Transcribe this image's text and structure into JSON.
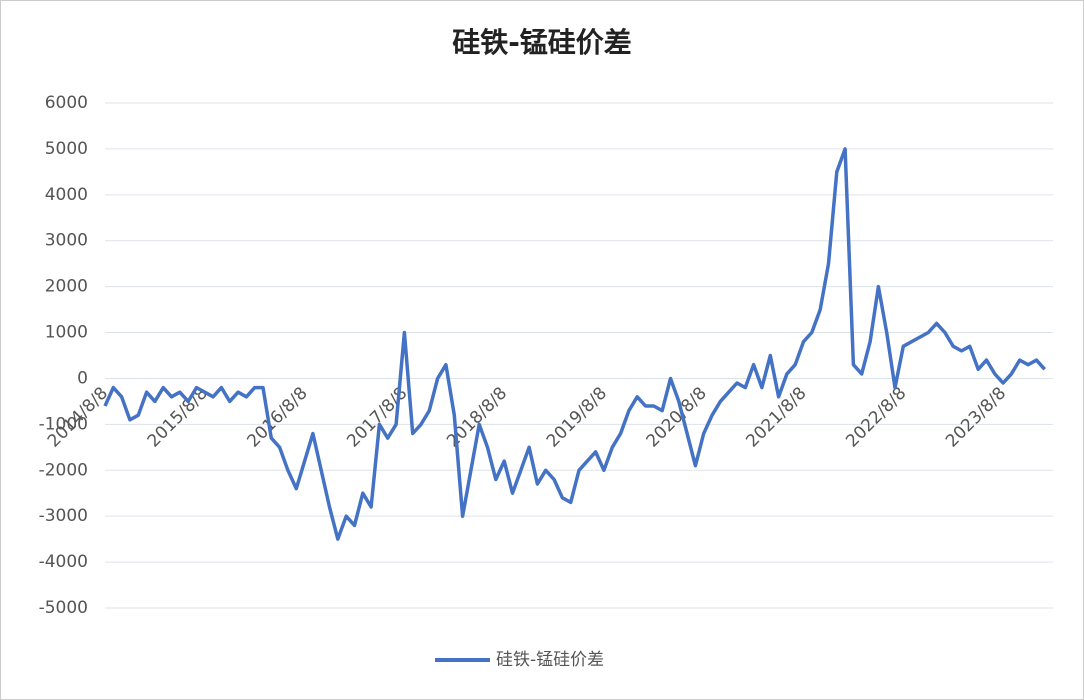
{
  "chart_data": {
    "type": "line",
    "title": "硅铁-锰硅价差",
    "categories": [
      "2014/8/8",
      null,
      null,
      null,
      null,
      null,
      null,
      null,
      null,
      null,
      null,
      null,
      "2015/8/8",
      null,
      null,
      null,
      null,
      null,
      null,
      null,
      null,
      null,
      null,
      null,
      "2016/8/8",
      null,
      null,
      null,
      null,
      null,
      null,
      null,
      null,
      null,
      null,
      null,
      "2017/8/8",
      null,
      null,
      null,
      null,
      null,
      null,
      null,
      null,
      null,
      null,
      null,
      "2018/8/8",
      null,
      null,
      null,
      null,
      null,
      null,
      null,
      null,
      null,
      null,
      null,
      "2019/8/8",
      null,
      null,
      null,
      null,
      null,
      null,
      null,
      null,
      null,
      null,
      null,
      "2020/8/8",
      null,
      null,
      null,
      null,
      null,
      null,
      null,
      null,
      null,
      null,
      null,
      "2021/8/8",
      null,
      null,
      null,
      null,
      null,
      null,
      null,
      null,
      null,
      null,
      null,
      "2022/8/8",
      null,
      null,
      null,
      null,
      null,
      null,
      null,
      null,
      null,
      null,
      null,
      "2023/8/8",
      null,
      null,
      null,
      null,
      null
    ],
    "series": [
      {
        "name": "硅铁-锰硅价差",
        "color": "#4472c4",
        "values": [
          -600,
          -200,
          -400,
          -900,
          -800,
          -300,
          -500,
          -200,
          -400,
          -300,
          -500,
          -200,
          -300,
          -400,
          -200,
          -500,
          -300,
          -400,
          -200,
          -200,
          -1300,
          -1500,
          -2000,
          -2400,
          -1800,
          -1200,
          -2000,
          -2800,
          -3500,
          -3000,
          -3200,
          -2500,
          -2800,
          -1000,
          -1300,
          -1000,
          1000,
          -1200,
          -1000,
          -700,
          0,
          300,
          -800,
          -3000,
          -2000,
          -1000,
          -1500,
          -2200,
          -1800,
          -2500,
          -2000,
          -1500,
          -2300,
          -2000,
          -2200,
          -2600,
          -2700,
          -2000,
          -1800,
          -1600,
          -2000,
          -1500,
          -1200,
          -700,
          -400,
          -600,
          -600,
          -700,
          0,
          -500,
          -1200,
          -1900,
          -1200,
          -800,
          -500,
          -300,
          -100,
          -200,
          300,
          -200,
          500,
          -400,
          100,
          300,
          800,
          1000,
          1500,
          2500,
          4500,
          5000,
          300,
          100,
          800,
          2000,
          1000,
          -200,
          700,
          800,
          900,
          1000,
          1200,
          1000,
          700,
          600,
          700,
          200,
          400,
          100,
          -100,
          100,
          400,
          300,
          400,
          200
        ]
      }
    ],
    "ylim": [
      -5000,
      6000
    ],
    "yticks": [
      -5000,
      -4000,
      -3000,
      -2000,
      -1000,
      0,
      1000,
      2000,
      3000,
      4000,
      5000,
      6000
    ],
    "grid": true
  }
}
